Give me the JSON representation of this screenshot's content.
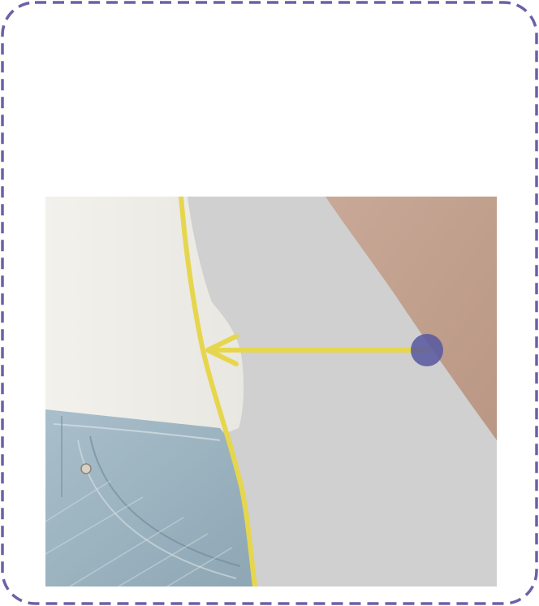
{
  "card": {
    "border_color": "#6a62a6",
    "background": "#ffffff"
  },
  "illustration": {
    "subject": "waist-side-body-outline",
    "colors": {
      "background": "#cfd0cf",
      "shirt": "#f1efea",
      "jeans": "#9fb5c2",
      "skin": "#c4a28f",
      "guide_line": "#e6d64e",
      "marker": "#5a5aa0"
    },
    "icons": [
      "arrow-left-icon",
      "drag-handle-icon"
    ]
  }
}
